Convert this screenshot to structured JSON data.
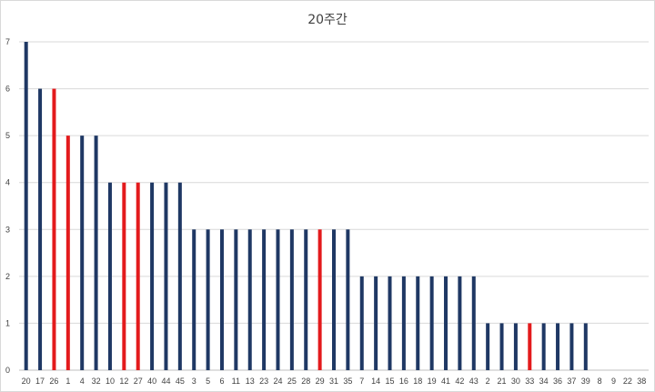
{
  "chart_data": {
    "type": "bar",
    "title": "20주간",
    "xlabel": "",
    "ylabel": "",
    "ylim": [
      0,
      7
    ],
    "yticks": [
      0,
      1,
      2,
      3,
      4,
      5,
      6,
      7
    ],
    "grid": true,
    "legend": "none",
    "categories": [
      "20",
      "17",
      "26",
      "1",
      "4",
      "32",
      "10",
      "12",
      "27",
      "40",
      "44",
      "45",
      "3",
      "5",
      "6",
      "11",
      "13",
      "23",
      "24",
      "25",
      "28",
      "29",
      "31",
      "35",
      "7",
      "14",
      "15",
      "16",
      "18",
      "19",
      "41",
      "42",
      "43",
      "2",
      "21",
      "30",
      "33",
      "34",
      "36",
      "37",
      "39",
      "8",
      "9",
      "22",
      "38"
    ],
    "values": [
      7,
      6,
      6,
      5,
      5,
      5,
      4,
      4,
      4,
      4,
      4,
      4,
      3,
      3,
      3,
      3,
      3,
      3,
      3,
      3,
      3,
      3,
      3,
      3,
      2,
      2,
      2,
      2,
      2,
      2,
      2,
      2,
      2,
      1,
      1,
      1,
      1,
      1,
      1,
      1,
      1,
      0,
      0,
      0,
      0
    ],
    "highlighted": [
      "26",
      "1",
      "12",
      "27",
      "29",
      "33"
    ],
    "colors": {
      "bar": "#1f3864",
      "highlight": "#e31a1c",
      "grid": "#d9d9d9",
      "axis": "#bfbfbf"
    }
  }
}
